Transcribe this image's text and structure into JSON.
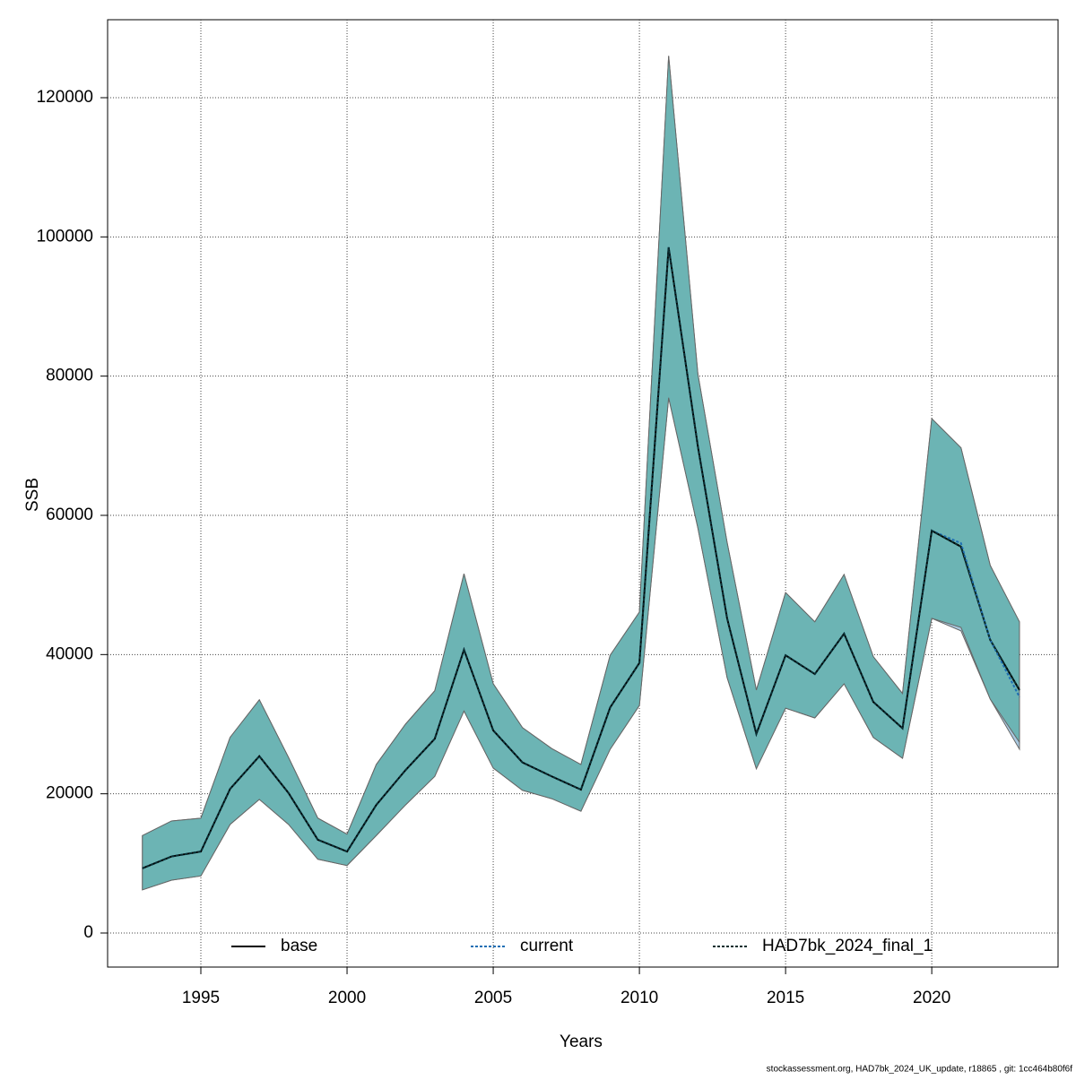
{
  "chart_data": {
    "type": "line",
    "x": [
      1993,
      1994,
      1995,
      1996,
      1997,
      1998,
      1999,
      2000,
      2001,
      2002,
      2003,
      2004,
      2005,
      2006,
      2007,
      2008,
      2009,
      2010,
      2011,
      2012,
      2013,
      2014,
      2015,
      2016,
      2017,
      2018,
      2019,
      2020,
      2021,
      2022,
      2023
    ],
    "xlabel": "Years",
    "ylabel": "SSB",
    "xlim": [
      1991.81,
      2024.32
    ],
    "xticks": [
      1995,
      2000,
      2005,
      2010,
      2015,
      2020
    ],
    "ylim": [
      -4893,
      131200
    ],
    "yticks": [
      0,
      20000,
      40000,
      60000,
      80000,
      100000,
      120000
    ],
    "grid": true,
    "legend": "bottom",
    "series": [
      {
        "name": "base",
        "color": "#000000",
        "dash": "solid",
        "values": [
          9300,
          11000,
          11700,
          20700,
          25400,
          20100,
          13400,
          11700,
          18400,
          23400,
          27900,
          40700,
          29100,
          24500,
          22500,
          20600,
          32400,
          38800,
          98500,
          69900,
          45200,
          28600,
          39900,
          37200,
          43000,
          33200,
          29400,
          57800,
          55500,
          42100,
          34900
        ]
      },
      {
        "name": "current",
        "color": "#1f6fb4",
        "dash": "dotted",
        "band_color": "#a9c9e0",
        "values": [
          9300,
          11000,
          11700,
          20700,
          25400,
          20100,
          13400,
          11700,
          18400,
          23400,
          27900,
          40700,
          29100,
          24500,
          22500,
          20600,
          32400,
          38800,
          98500,
          69900,
          45200,
          28600,
          39900,
          37200,
          43000,
          33200,
          29400,
          57800,
          56000,
          42100,
          33900
        ],
        "lower": [
          6200,
          7600,
          8200,
          15600,
          19200,
          15600,
          10600,
          9700,
          14000,
          18400,
          22500,
          31900,
          23700,
          20500,
          19300,
          17500,
          26400,
          32700,
          76900,
          58200,
          36700,
          23600,
          32300,
          30900,
          35800,
          28100,
          25100,
          45200,
          43400,
          33600,
          26400
        ],
        "upper": [
          14000,
          16100,
          16500,
          28100,
          33500,
          25200,
          16500,
          14200,
          24200,
          30000,
          34800,
          51600,
          35800,
          29500,
          26500,
          24200,
          39900,
          46100,
          126000,
          80300,
          56100,
          34900,
          48900,
          44700,
          51500,
          39700,
          34400,
          73900,
          69700,
          52800,
          44700
        ]
      },
      {
        "name": "HAD7bk_2024_final_1",
        "color": "#0b2f2f",
        "dash": "dotted",
        "band_color": "#6cb4b4",
        "values": [
          9300,
          11000,
          11700,
          20700,
          25400,
          20100,
          13400,
          11700,
          18400,
          23400,
          27900,
          40700,
          29100,
          24500,
          22500,
          20600,
          32400,
          38800,
          98500,
          69900,
          45200,
          28600,
          39900,
          37200,
          43000,
          33200,
          29400,
          57800,
          55500,
          42100,
          34900
        ],
        "lower": [
          6200,
          7600,
          8200,
          15600,
          19200,
          15600,
          10600,
          9700,
          14000,
          18400,
          22500,
          31900,
          23700,
          20500,
          19300,
          17500,
          26400,
          32700,
          76900,
          58200,
          36700,
          23600,
          32300,
          30900,
          35800,
          28100,
          25100,
          45200,
          43900,
          33600,
          27400
        ],
        "upper": [
          14000,
          16100,
          16500,
          28100,
          33500,
          25200,
          16500,
          14200,
          24200,
          30000,
          34800,
          51600,
          35800,
          29500,
          26500,
          24200,
          39900,
          46100,
          126000,
          80300,
          56100,
          34900,
          48900,
          44700,
          51500,
          39700,
          34400,
          73900,
          69700,
          52800,
          44700
        ]
      }
    ],
    "footer": "stockassessment.org, HAD7bk_2024_UK_update, r18865 , git: 1cc464b80f6f"
  }
}
